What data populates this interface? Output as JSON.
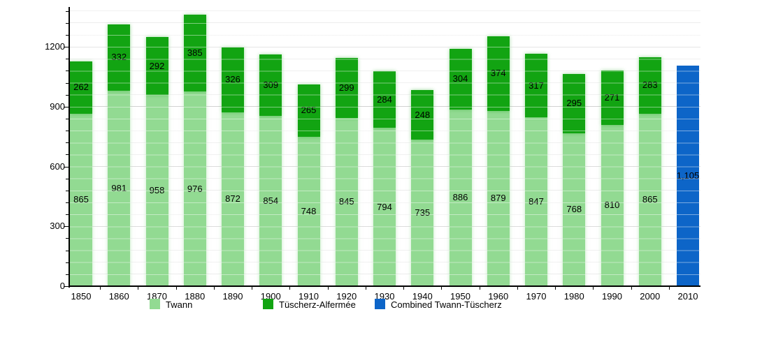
{
  "chart_data": {
    "type": "bar",
    "stacked": true,
    "title": "",
    "categories": [
      "1850",
      "1860",
      "1870",
      "1880",
      "1890",
      "1900",
      "1910",
      "1920",
      "1930",
      "1940",
      "1950",
      "1960",
      "1970",
      "1980",
      "1990",
      "2000",
      "2010"
    ],
    "series": [
      {
        "name": "Twann",
        "color": "#92da92",
        "values": [
          865,
          981,
          958,
          976,
          872,
          854,
          748,
          845,
          794,
          735,
          886,
          879,
          847,
          768,
          810,
          865,
          null
        ]
      },
      {
        "name": "Tüscherz-Alfermée",
        "color": "#12a412",
        "values": [
          262,
          332,
          292,
          385,
          326,
          309,
          265,
          299,
          284,
          248,
          304,
          374,
          317,
          295,
          271,
          283,
          null
        ]
      },
      {
        "name": "Combined Twann-Tüscherz",
        "color": "#0d65c8",
        "values": [
          null,
          null,
          null,
          null,
          null,
          null,
          null,
          null,
          null,
          null,
          null,
          null,
          null,
          null,
          null,
          null,
          1105
        ]
      }
    ],
    "value_labels": true,
    "value_label_example": "1,105",
    "xlabel": "",
    "ylabel": "",
    "ylim": [
      0,
      1400
    ],
    "y_major_ticks": [
      0,
      300,
      600,
      900,
      1200
    ],
    "y_minor_step": 60,
    "grid": true,
    "legend_position": "bottom",
    "axis_color": "#000000",
    "text_color": "#000000",
    "background_color": "#ffffff"
  },
  "axis": {
    "y_labels": [
      "0",
      "300",
      "600",
      "900",
      "1200"
    ],
    "x_labels": [
      "1850",
      "1860",
      "1870",
      "1880",
      "1890",
      "1900",
      "1910",
      "1920",
      "1930",
      "1940",
      "1950",
      "1960",
      "1970",
      "1980",
      "1990",
      "2000",
      "2010"
    ]
  },
  "legend": {
    "items": [
      {
        "label": "Twann",
        "color": "#92da92"
      },
      {
        "label": "Tüscherz-Alfermée",
        "color": "#12a412"
      },
      {
        "label": "Combined Twann-Tüscherz",
        "color": "#0d65c8"
      }
    ]
  }
}
